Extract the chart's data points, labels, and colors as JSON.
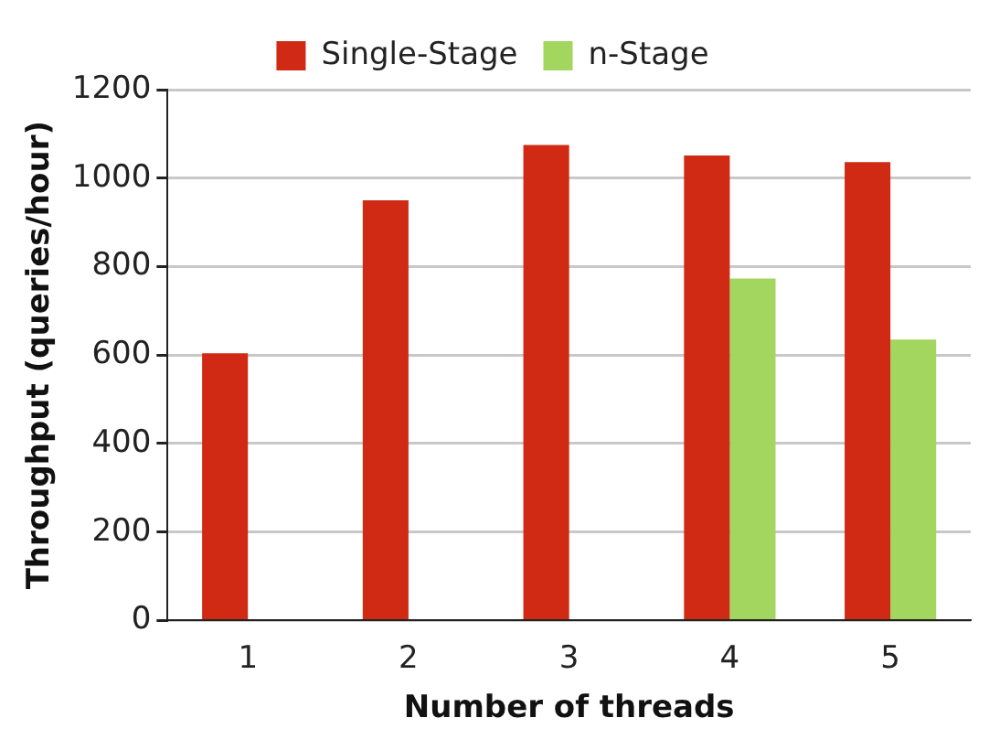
{
  "chart_data": {
    "type": "bar",
    "xlabel": "Number of threads",
    "ylabel": "Throughput (queries/hour)",
    "categories": [
      "1",
      "2",
      "3",
      "4",
      "5"
    ],
    "series": [
      {
        "name": "Single-Stage",
        "color": "#d02a14",
        "values": [
          604,
          950,
          1075,
          1051,
          1036
        ]
      },
      {
        "name": "n-Stage",
        "color": "#a2d65e",
        "values": [
          null,
          null,
          null,
          773,
          635
        ]
      }
    ],
    "ylim": [
      0,
      1200
    ],
    "yticks": [
      0,
      200,
      400,
      600,
      800,
      1000,
      1200
    ],
    "grid": "y",
    "legend": "top"
  }
}
